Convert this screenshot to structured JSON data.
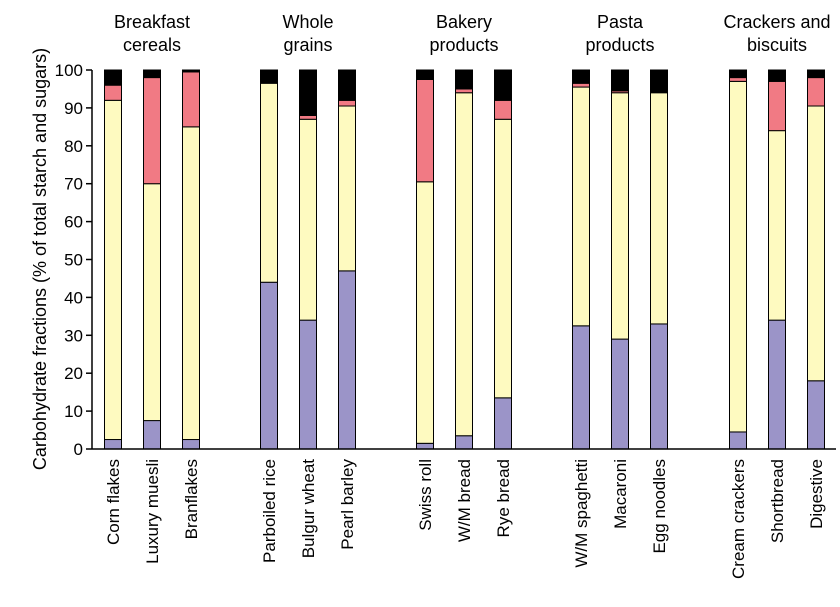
{
  "chart_data": {
    "type": "bar",
    "stacked": true,
    "ylabel": "Carbohydrate fractions (% of total starch and sugars)",
    "ylim": [
      0,
      100
    ],
    "yticks": [
      0,
      10,
      20,
      30,
      40,
      50,
      60,
      70,
      80,
      90,
      100
    ],
    "grid": false,
    "groups": [
      {
        "label": [
          "Breakfast",
          "cereals"
        ],
        "categories": [
          "Corn flakes",
          "Luxury muesli",
          "Branflakes"
        ]
      },
      {
        "label": [
          "Whole",
          "grains"
        ],
        "categories": [
          "Parboiled rice",
          "Bulgur  wheat",
          "Pearl barley"
        ]
      },
      {
        "label": [
          "Bakery",
          "products"
        ],
        "categories": [
          "Swiss roll",
          "W/M bread",
          "Rye bread"
        ]
      },
      {
        "label": [
          "Pasta",
          "products"
        ],
        "categories": [
          "W/M spaghetti",
          "Macaroni",
          "Egg noodles"
        ]
      },
      {
        "label": [
          "Crackers and",
          "biscuits"
        ],
        "categories": [
          "Cream crackers",
          "Shortbread",
          "Digestive"
        ]
      }
    ],
    "series": [
      {
        "color": "#9b94c8",
        "values": [
          2.5,
          7.5,
          2.5,
          44,
          34,
          47,
          1.5,
          3.5,
          13.5,
          32.5,
          29,
          33,
          4.5,
          34,
          18
        ]
      },
      {
        "color": "#fefac0",
        "values": [
          89.5,
          62.5,
          82.5,
          52.5,
          53,
          43.5,
          69,
          90.5,
          73.5,
          63,
          65,
          61,
          92.5,
          50,
          72.5
        ]
      },
      {
        "color": "#f17a84",
        "values": [
          4,
          28,
          14.5,
          0,
          1,
          1.5,
          27,
          1,
          5,
          1,
          0.5,
          0,
          1,
          13,
          7.5
        ]
      },
      {
        "color": "#000000",
        "values": [
          4,
          2,
          0.5,
          3.5,
          12,
          8,
          2.5,
          5,
          8,
          3.5,
          5.5,
          6,
          2,
          3,
          2
        ]
      }
    ]
  }
}
